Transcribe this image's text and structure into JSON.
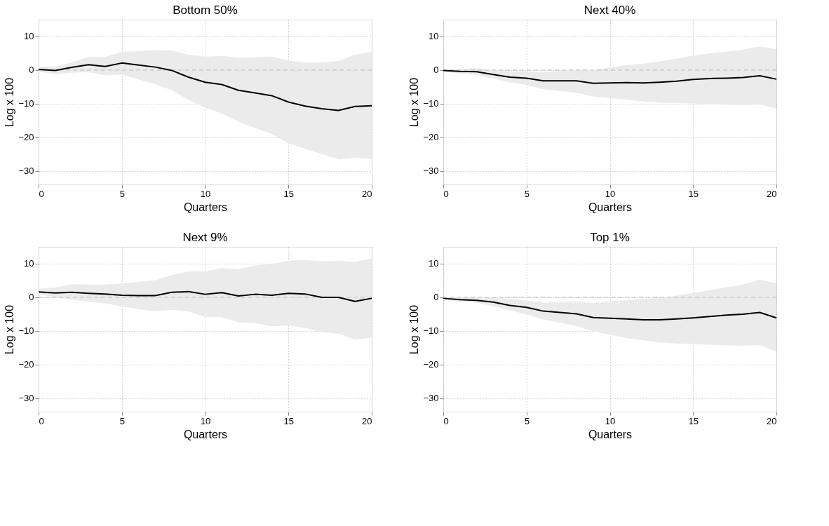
{
  "chart_data": [
    {
      "type": "line",
      "title": "Bottom 50%",
      "xlabel": "Quarters",
      "ylabel": "Log x 100",
      "x": [
        0,
        1,
        2,
        3,
        4,
        5,
        6,
        7,
        8,
        9,
        10,
        11,
        12,
        13,
        14,
        15,
        16,
        17,
        18,
        19,
        20
      ],
      "xlim": [
        0,
        20
      ],
      "xticks": [
        0,
        5,
        10,
        15,
        20
      ],
      "ylim": [
        -34,
        15
      ],
      "yticks": [
        -30,
        -20,
        -10,
        0,
        10
      ],
      "grid": true,
      "line_style": "solid",
      "ref_lines": [
        {
          "axis": "y",
          "value": 0,
          "color": "#bbbbbb",
          "line_style": "dashed"
        }
      ],
      "series": [
        {
          "color": "#000000",
          "values": [
            0.2,
            -0.1,
            0.8,
            1.6,
            1.1,
            2.1,
            1.5,
            0.9,
            -0.1,
            -2.1,
            -3.6,
            -4.3,
            -6.0,
            -6.8,
            -7.6,
            -9.5,
            -10.7,
            -11.5,
            -12.0,
            -10.8,
            -10.6
          ],
          "lower": [
            -0.5,
            -1.2,
            -0.8,
            -0.6,
            -1.6,
            -1.3,
            -2.8,
            -4.2,
            -6.0,
            -8.8,
            -11.2,
            -12.9,
            -15.4,
            -17.2,
            -19.0,
            -21.7,
            -23.4,
            -25.0,
            -26.5,
            -26.1,
            -26.4
          ],
          "upper": [
            0.8,
            1.1,
            2.3,
            3.9,
            3.9,
            5.4,
            5.6,
            6.0,
            5.8,
            4.6,
            4.0,
            4.2,
            3.7,
            3.8,
            4.0,
            2.8,
            2.3,
            2.3,
            2.7,
            4.6,
            5.4
          ]
        }
      ]
    },
    {
      "type": "line",
      "title": "Next 40%",
      "xlabel": "Quarters",
      "ylabel": "Log x 100",
      "x": [
        0,
        1,
        2,
        3,
        4,
        5,
        6,
        7,
        8,
        9,
        10,
        11,
        12,
        13,
        14,
        15,
        16,
        17,
        18,
        19,
        20
      ],
      "xlim": [
        0,
        20
      ],
      "xticks": [
        0,
        5,
        10,
        15,
        20
      ],
      "ylim": [
        -34,
        15
      ],
      "yticks": [
        -30,
        -20,
        -10,
        0,
        10
      ],
      "grid": true,
      "line_style": "solid",
      "ref_lines": [
        {
          "axis": "y",
          "value": 0,
          "color": "#bbbbbb",
          "line_style": "dashed"
        }
      ],
      "series": [
        {
          "color": "#000000",
          "values": [
            -0.1,
            -0.4,
            -0.5,
            -1.3,
            -2.1,
            -2.4,
            -3.2,
            -3.2,
            -3.2,
            -3.9,
            -3.8,
            -3.7,
            -3.8,
            -3.6,
            -3.3,
            -2.8,
            -2.5,
            -2.4,
            -2.2,
            -1.7,
            -2.7
          ],
          "lower": [
            -0.5,
            -1.0,
            -1.4,
            -2.5,
            -3.6,
            -4.4,
            -5.7,
            -6.2,
            -6.7,
            -7.9,
            -8.3,
            -8.8,
            -9.3,
            -9.7,
            -9.8,
            -9.9,
            -10.1,
            -10.3,
            -10.5,
            -10.2,
            -11.5
          ],
          "upper": [
            0.2,
            0.3,
            0.6,
            0.0,
            -0.3,
            -0.3,
            -0.7,
            -0.2,
            0.2,
            0.0,
            0.8,
            1.5,
            1.9,
            2.6,
            3.4,
            4.3,
            5.0,
            5.5,
            6.1,
            7.0,
            6.2
          ]
        }
      ]
    },
    {
      "type": "line",
      "title": "Next 9%",
      "xlabel": "Quarters",
      "ylabel": "Log x 100",
      "x": [
        0,
        1,
        2,
        3,
        4,
        5,
        6,
        7,
        8,
        9,
        10,
        11,
        12,
        13,
        14,
        15,
        16,
        17,
        18,
        19,
        20
      ],
      "xlim": [
        0,
        20
      ],
      "xticks": [
        0,
        5,
        10,
        15,
        20
      ],
      "ylim": [
        -34,
        15
      ],
      "yticks": [
        -30,
        -20,
        -10,
        0,
        10
      ],
      "grid": true,
      "line_style": "solid",
      "ref_lines": [
        {
          "axis": "y",
          "value": 0,
          "color": "#bbbbbb",
          "line_style": "dashed"
        }
      ],
      "series": [
        {
          "color": "#000000",
          "values": [
            1.6,
            1.3,
            1.5,
            1.2,
            1.0,
            0.6,
            0.5,
            0.5,
            1.5,
            1.7,
            0.9,
            1.4,
            0.4,
            0.9,
            0.6,
            1.2,
            1.0,
            0.0,
            0.0,
            -1.2,
            -0.3
          ],
          "lower": [
            1.0,
            0.0,
            -0.7,
            -1.3,
            -1.8,
            -2.7,
            -3.5,
            -4.1,
            -3.7,
            -4.2,
            -5.8,
            -5.9,
            -7.4,
            -7.7,
            -8.6,
            -8.4,
            -9.1,
            -10.4,
            -10.8,
            -12.6,
            -12.0
          ],
          "upper": [
            2.6,
            2.9,
            3.9,
            3.8,
            3.8,
            4.1,
            4.6,
            5.1,
            6.6,
            7.7,
            7.7,
            8.7,
            8.4,
            9.5,
            9.9,
            10.9,
            11.1,
            10.7,
            10.9,
            10.5,
            11.6
          ]
        }
      ]
    },
    {
      "type": "line",
      "title": "Top 1%",
      "xlabel": "Quarters",
      "ylabel": "Log x 100",
      "x": [
        0,
        1,
        2,
        3,
        4,
        5,
        6,
        7,
        8,
        9,
        10,
        11,
        12,
        13,
        14,
        15,
        16,
        17,
        18,
        19,
        20
      ],
      "xlim": [
        0,
        20
      ],
      "xticks": [
        0,
        5,
        10,
        15,
        20
      ],
      "ylim": [
        -34,
        15
      ],
      "yticks": [
        -30,
        -20,
        -10,
        0,
        10
      ],
      "grid": true,
      "line_style": "solid",
      "ref_lines": [
        {
          "axis": "y",
          "value": 0,
          "color": "#bbbbbb",
          "line_style": "dashed"
        }
      ],
      "series": [
        {
          "color": "#000000",
          "values": [
            -0.3,
            -0.7,
            -0.9,
            -1.4,
            -2.4,
            -3.0,
            -4.1,
            -4.5,
            -4.9,
            -6.0,
            -6.2,
            -6.4,
            -6.7,
            -6.7,
            -6.4,
            -6.1,
            -5.7,
            -5.3,
            -5.0,
            -4.5,
            -6.1
          ],
          "lower": [
            -0.6,
            -1.3,
            -1.6,
            -2.6,
            -3.9,
            -5.0,
            -6.6,
            -7.5,
            -8.5,
            -10.1,
            -11.1,
            -12.1,
            -12.8,
            -13.4,
            -13.7,
            -13.9,
            -14.1,
            -14.3,
            -14.4,
            -14.2,
            -16.1
          ],
          "upper": [
            0.0,
            0.0,
            0.0,
            -0.1,
            -0.6,
            -0.9,
            -1.6,
            -1.4,
            -1.2,
            -1.7,
            -1.2,
            -0.8,
            -0.5,
            -0.2,
            0.5,
            1.3,
            2.1,
            3.0,
            3.8,
            5.3,
            4.1
          ]
        }
      ]
    }
  ]
}
